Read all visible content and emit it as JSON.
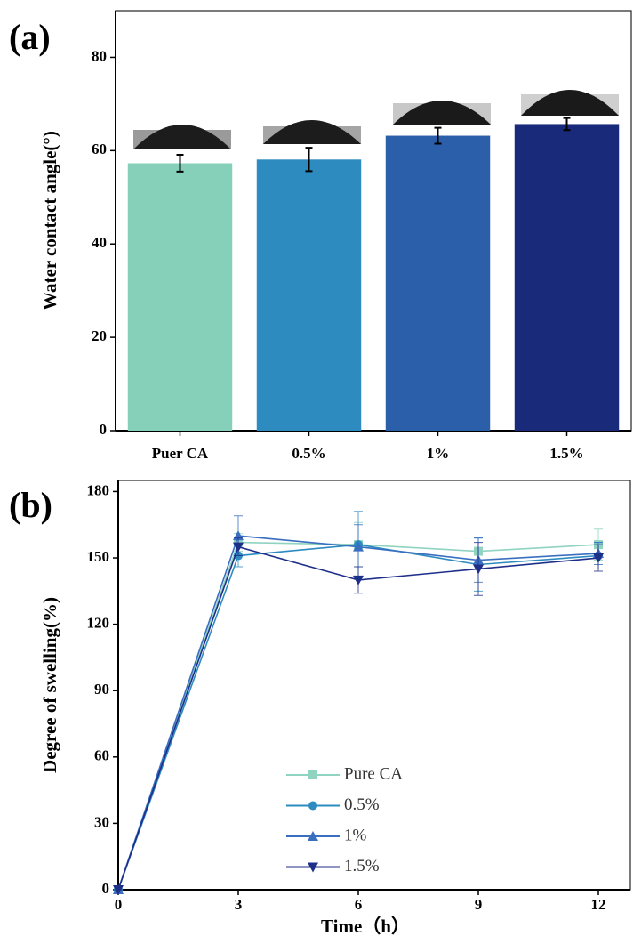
{
  "chart_data": [
    {
      "type": "bar",
      "panel_label": "(a)",
      "y_label": "Water contact angle(°)",
      "categories": [
        "Puer CA",
        "0.5%",
        "1%",
        "1.5%"
      ],
      "values": [
        57.3,
        58.1,
        63.2,
        65.7
      ],
      "errors": [
        1.8,
        2.5,
        1.7,
        1.3
      ],
      "colors": [
        "#86cfb9",
        "#2e8bc0",
        "#2b5faa",
        "#1a2a7a"
      ],
      "ylim": [
        0,
        90
      ],
      "yticks": [
        0,
        20,
        40,
        60,
        80
      ]
    },
    {
      "type": "line",
      "panel_label": "(b)",
      "y_label": "Degree of swelling(%)",
      "x_label": "Time（h）",
      "x": [
        0,
        3,
        6,
        9,
        12
      ],
      "series": [
        {
          "name": "Pure CA",
          "color": "#8fd3c0",
          "marker": "square",
          "values": [
            0,
            157,
            156,
            153,
            156
          ],
          "errors": [
            0,
            4,
            10,
            6,
            7
          ]
        },
        {
          "name": "0.5%",
          "color": "#2e8bc0",
          "marker": "circle",
          "values": [
            0,
            151,
            156,
            147,
            151
          ],
          "errors": [
            0,
            5,
            15,
            12,
            6
          ]
        },
        {
          "name": "1%",
          "color": "#3a6fc0",
          "marker": "triangle-up",
          "values": [
            0,
            160,
            155,
            149,
            152
          ],
          "errors": [
            0,
            9,
            10,
            10,
            5
          ]
        },
        {
          "name": "1.5%",
          "color": "#1e2f8a",
          "marker": "triangle-down",
          "values": [
            0,
            155,
            140,
            145,
            150
          ],
          "errors": [
            0,
            4,
            6,
            12,
            6
          ]
        }
      ],
      "xlim": [
        0,
        12.8
      ],
      "xticks": [
        0,
        3,
        6,
        9,
        12
      ],
      "ylim": [
        0,
        185
      ],
      "yticks": [
        0,
        30,
        60,
        90,
        120,
        150,
        180
      ]
    }
  ]
}
